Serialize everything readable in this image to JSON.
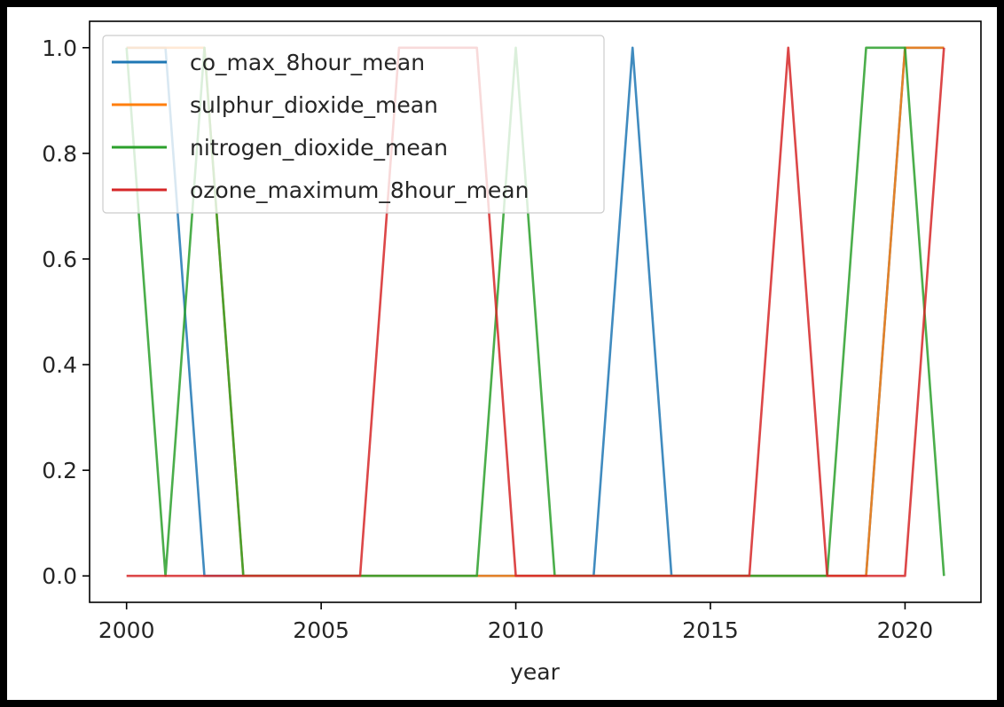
{
  "chart_data": {
    "type": "line",
    "xlabel": "year",
    "ylabel": "",
    "x": [
      2000,
      2001,
      2002,
      2003,
      2004,
      2005,
      2006,
      2007,
      2008,
      2009,
      2010,
      2011,
      2012,
      2013,
      2014,
      2015,
      2016,
      2017,
      2018,
      2019,
      2020,
      2021
    ],
    "xlim": [
      1999.05,
      2021.95
    ],
    "ylim": [
      -0.05,
      1.05
    ],
    "xticks": [
      2000,
      2005,
      2010,
      2015,
      2020
    ],
    "yticks": [
      "0.0",
      "0.2",
      "0.4",
      "0.6",
      "0.8",
      "1.0"
    ],
    "grid": false,
    "legend_position": "upper left",
    "series": [
      {
        "name": "co_max_8hour_mean",
        "color": "#1f77b4",
        "values": [
          1,
          1,
          0,
          0,
          0,
          0,
          0,
          0,
          0,
          0,
          0,
          0,
          0,
          1,
          0,
          0,
          0,
          0,
          0,
          0,
          1,
          1
        ]
      },
      {
        "name": "sulphur_dioxide_mean",
        "color": "#ff7f0e",
        "values": [
          1,
          1,
          1,
          0,
          0,
          0,
          0,
          0,
          0,
          0,
          0,
          0,
          0,
          0,
          0,
          0,
          0,
          0,
          0,
          0,
          1,
          1
        ]
      },
      {
        "name": "nitrogen_dioxide_mean",
        "color": "#2ca02c",
        "values": [
          1,
          0,
          1,
          0,
          0,
          0,
          0,
          0,
          0,
          0,
          1,
          0,
          0,
          0,
          0,
          0,
          0,
          0,
          0,
          1,
          1,
          0
        ]
      },
      {
        "name": "ozone_maximum_8hour_mean",
        "color": "#d62728",
        "values": [
          0,
          0,
          0,
          0,
          0,
          0,
          0,
          1,
          1,
          1,
          0,
          0,
          0,
          0,
          0,
          0,
          0,
          1,
          0,
          0,
          0,
          1
        ]
      }
    ]
  }
}
